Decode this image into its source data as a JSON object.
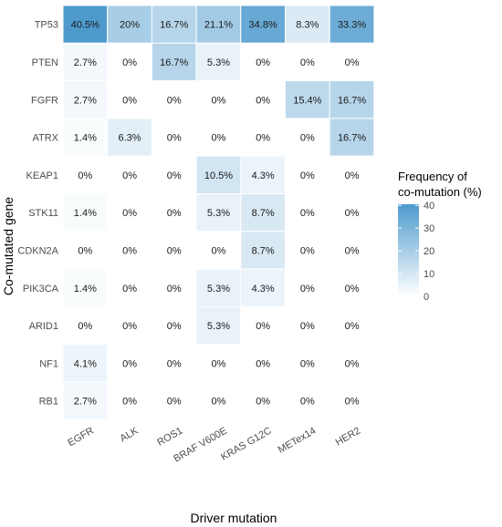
{
  "chart_data": {
    "type": "heatmap",
    "title": "",
    "xlabel": "Driver mutation",
    "ylabel": "Co-mutated gene",
    "x_categories": [
      "EGFR",
      "ALK",
      "ROS1",
      "BRAF V600E",
      "KRAS G12C",
      "METex14",
      "HER2"
    ],
    "y_categories": [
      "TP53",
      "PTEN",
      "FGFR",
      "ATRX",
      "KEAP1",
      "STK11",
      "CDKN2A",
      "PIK3CA",
      "ARID1",
      "NF1",
      "RB1"
    ],
    "values": [
      [
        40.5,
        20,
        16.7,
        21.1,
        34.8,
        8.3,
        33.3
      ],
      [
        2.7,
        0,
        16.7,
        5.3,
        0,
        0,
        0
      ],
      [
        2.7,
        0,
        0,
        0,
        0,
        15.4,
        16.7
      ],
      [
        1.4,
        6.3,
        0,
        0,
        0,
        0,
        16.7
      ],
      [
        0,
        0,
        0,
        10.5,
        4.3,
        0,
        0
      ],
      [
        1.4,
        0,
        0,
        5.3,
        8.7,
        0,
        0
      ],
      [
        0,
        0,
        0,
        0,
        8.7,
        0,
        0
      ],
      [
        1.4,
        0,
        0,
        5.3,
        4.3,
        0,
        0
      ],
      [
        0,
        0,
        0,
        5.3,
        0,
        0,
        0
      ],
      [
        4.1,
        0,
        0,
        0,
        0,
        0,
        0
      ],
      [
        2.7,
        0,
        0,
        0,
        0,
        0,
        0
      ]
    ],
    "labels": [
      [
        "40.5%",
        "20%",
        "16.7%",
        "21.1%",
        "34.8%",
        "8.3%",
        "33.3%"
      ],
      [
        "2.7%",
        "0%",
        "16.7%",
        "5.3%",
        "0%",
        "0%",
        "0%"
      ],
      [
        "2.7%",
        "0%",
        "0%",
        "0%",
        "0%",
        "15.4%",
        "16.7%"
      ],
      [
        "1.4%",
        "6.3%",
        "0%",
        "0%",
        "0%",
        "0%",
        "16.7%"
      ],
      [
        "0%",
        "0%",
        "0%",
        "10.5%",
        "4.3%",
        "0%",
        "0%"
      ],
      [
        "1.4%",
        "0%",
        "0%",
        "5.3%",
        "8.7%",
        "0%",
        "0%"
      ],
      [
        "0%",
        "0%",
        "0%",
        "0%",
        "8.7%",
        "0%",
        "0%"
      ],
      [
        "1.4%",
        "0%",
        "0%",
        "5.3%",
        "4.3%",
        "0%",
        "0%"
      ],
      [
        "0%",
        "0%",
        "0%",
        "5.3%",
        "0%",
        "0%",
        "0%"
      ],
      [
        "4.1%",
        "0%",
        "0%",
        "0%",
        "0%",
        "0%",
        "0%"
      ],
      [
        "2.7%",
        "0%",
        "0%",
        "0%",
        "0%",
        "0%",
        "0%"
      ]
    ],
    "legend": {
      "title_lines": [
        "Frequency of",
        "co-mutation (%)"
      ],
      "ticks": [
        0,
        10,
        20,
        30,
        40
      ],
      "tick_labels": [
        "0",
        "10",
        "20",
        "30",
        "40"
      ],
      "range": [
        0,
        40.5
      ],
      "position": "right"
    },
    "colors": {
      "low": "#ffffff",
      "high": "#4e9acd"
    },
    "grid": false
  }
}
